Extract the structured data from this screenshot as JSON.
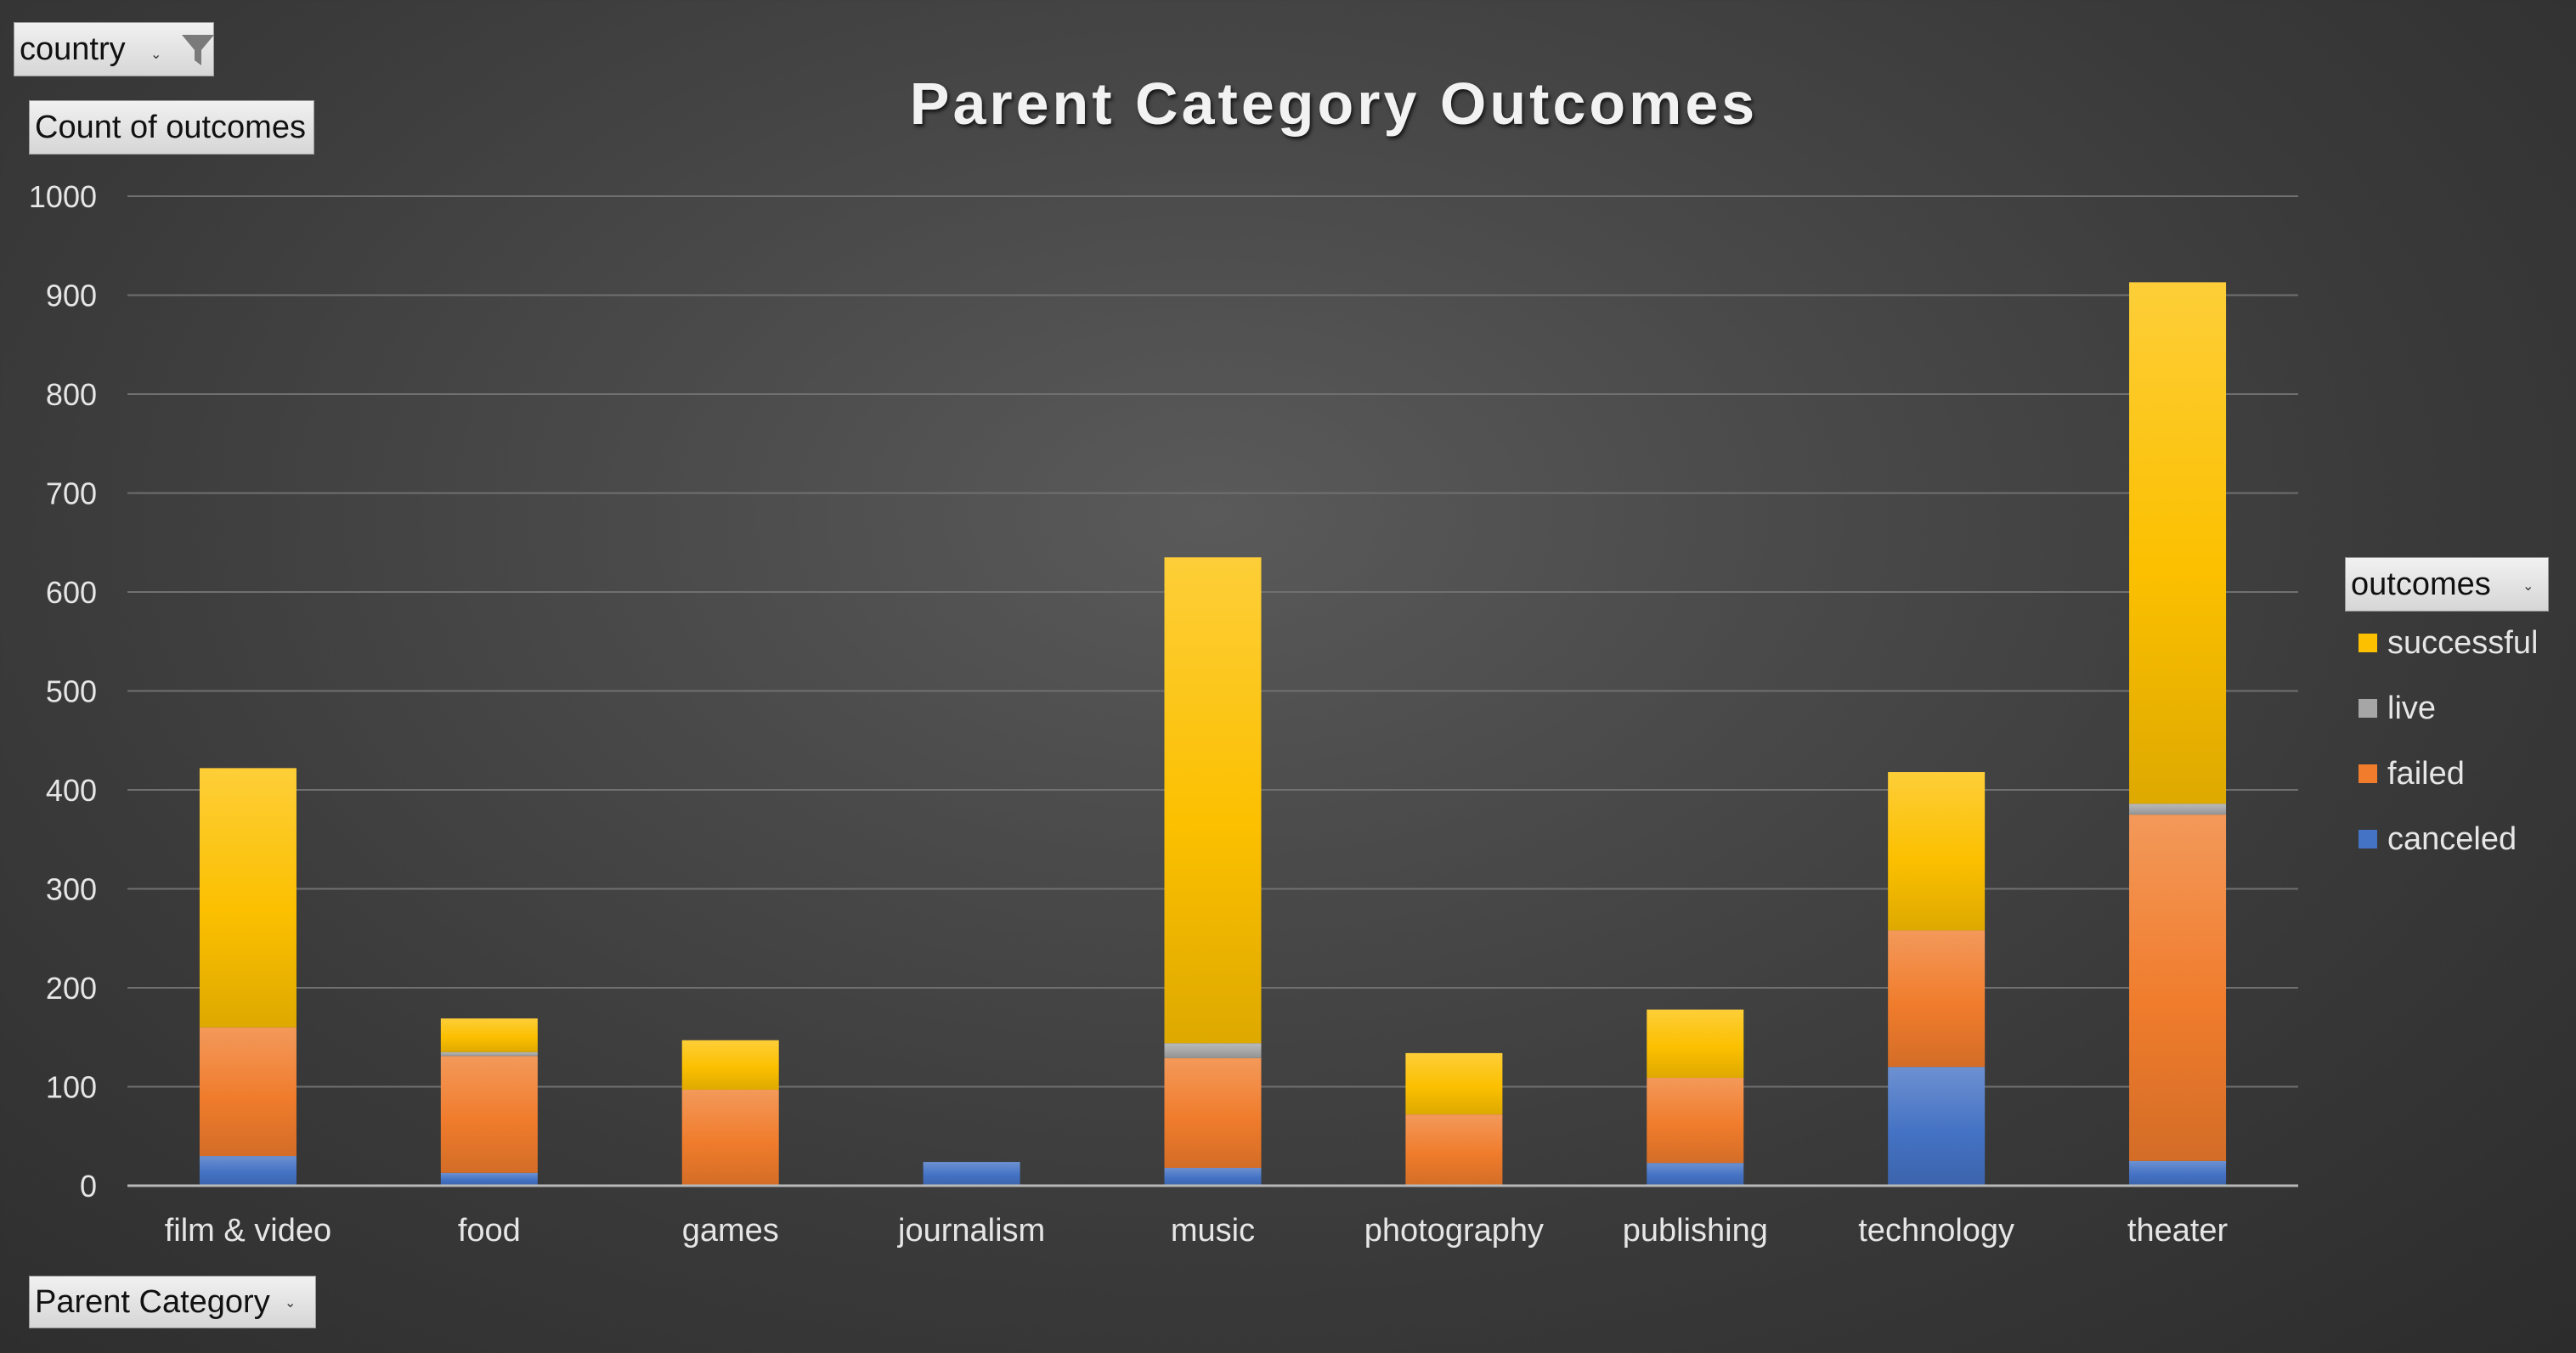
{
  "filters": {
    "country_label": "country",
    "value_label": "Count of outcomes",
    "axis_label": "Parent Category",
    "legend_label": "outcomes"
  },
  "colors": {
    "successful": "#fcc000",
    "live": "#a6a6a6",
    "failed": "#f07c2c",
    "canceled": "#4472c4",
    "gridline": "#707070",
    "axis_text": "#e6e6e6"
  },
  "icons": {
    "filter": "funnel-icon",
    "dropdown": "dropdown-arrow-icon"
  },
  "chart_data": {
    "type": "bar",
    "stacked": true,
    "title": "Parent Category Outcomes",
    "xlabel": "Parent Category",
    "ylabel": "Count of outcomes",
    "ylim": [
      0,
      1000
    ],
    "yticks": [
      0,
      100,
      200,
      300,
      400,
      500,
      600,
      700,
      800,
      900,
      1000
    ],
    "grid": true,
    "legend_position": "right",
    "categories": [
      "film & video",
      "food",
      "games",
      "journalism",
      "music",
      "photography",
      "publishing",
      "technology",
      "theater"
    ],
    "series": [
      {
        "name": "canceled",
        "color": "#4472c4",
        "values": [
          30,
          13,
          0,
          24,
          18,
          0,
          23,
          120,
          25
        ]
      },
      {
        "name": "failed",
        "color": "#f07c2c",
        "values": [
          130,
          118,
          97,
          0,
          111,
          72,
          86,
          138,
          350
        ]
      },
      {
        "name": "live",
        "color": "#a6a6a6",
        "values": [
          0,
          4,
          0,
          0,
          15,
          0,
          0,
          0,
          11
        ]
      },
      {
        "name": "successful",
        "color": "#fcc000",
        "values": [
          262,
          34,
          50,
          0,
          491,
          62,
          69,
          160,
          527
        ]
      }
    ],
    "legend_order": [
      "successful",
      "live",
      "failed",
      "canceled"
    ]
  }
}
